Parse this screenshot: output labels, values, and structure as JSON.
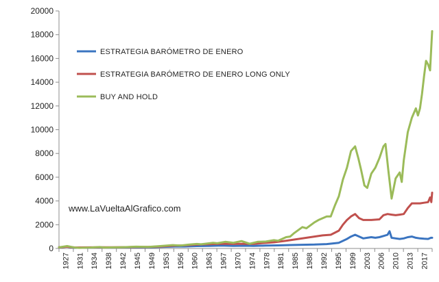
{
  "chart_data": {
    "type": "line",
    "title": "",
    "xlabel": "",
    "ylabel": "",
    "xlim": [
      1927,
      2019
    ],
    "ylim": [
      0,
      20000
    ],
    "yticks": [
      0,
      2000,
      4000,
      6000,
      8000,
      10000,
      12000,
      14000,
      16000,
      18000,
      20000
    ],
    "xtick_labels": [
      "1927",
      "1931",
      "1934",
      "1938",
      "1942",
      "1945",
      "1949",
      "1953",
      "1956",
      "1960",
      "1963",
      "1967",
      "1970",
      "1974",
      "1978",
      "1981",
      "1985",
      "1988",
      "1992",
      "1995",
      "1999",
      "2003",
      "2006",
      "2010",
      "2013",
      "2017"
    ],
    "grid": false,
    "legend_position": "top-left",
    "annotation": "www.LaVueltaAlGrafico.com",
    "series": [
      {
        "name": "ESTRATEGIA BARÓMETRO DE ENERO",
        "color": "#3a74c0",
        "points": [
          [
            1927,
            100
          ],
          [
            1929,
            150
          ],
          [
            1931,
            60
          ],
          [
            1933,
            70
          ],
          [
            1935,
            80
          ],
          [
            1937,
            90
          ],
          [
            1940,
            80
          ],
          [
            1943,
            90
          ],
          [
            1946,
            110
          ],
          [
            1949,
            100
          ],
          [
            1952,
            130
          ],
          [
            1955,
            160
          ],
          [
            1958,
            170
          ],
          [
            1961,
            200
          ],
          [
            1964,
            220
          ],
          [
            1967,
            240
          ],
          [
            1970,
            220
          ],
          [
            1973,
            230
          ],
          [
            1975,
            220
          ],
          [
            1978,
            240
          ],
          [
            1981,
            260
          ],
          [
            1984,
            290
          ],
          [
            1987,
            310
          ],
          [
            1990,
            330
          ],
          [
            1993,
            370
          ],
          [
            1996,
            480
          ],
          [
            1998,
            800
          ],
          [
            1999,
            1000
          ],
          [
            2000,
            1150
          ],
          [
            2001,
            1000
          ],
          [
            2002,
            850
          ],
          [
            2003,
            900
          ],
          [
            2004,
            950
          ],
          [
            2005,
            900
          ],
          [
            2006,
            950
          ],
          [
            2007,
            1050
          ],
          [
            2008,
            1150
          ],
          [
            2008.5,
            1450
          ],
          [
            2009,
            900
          ],
          [
            2010,
            850
          ],
          [
            2011,
            800
          ],
          [
            2012,
            850
          ],
          [
            2013,
            950
          ],
          [
            2014,
            1000
          ],
          [
            2015,
            900
          ],
          [
            2016,
            850
          ],
          [
            2017,
            820
          ],
          [
            2018,
            800
          ],
          [
            2018.7,
            900
          ],
          [
            2019,
            900
          ]
        ]
      },
      {
        "name": "ESTRATEGIA BARÓMETRO DE ENERO LONG ONLY",
        "color": "#c0504d",
        "points": [
          [
            1927,
            100
          ],
          [
            1929,
            150
          ],
          [
            1931,
            80
          ],
          [
            1934,
            90
          ],
          [
            1937,
            100
          ],
          [
            1940,
            100
          ],
          [
            1943,
            110
          ],
          [
            1946,
            130
          ],
          [
            1949,
            130
          ],
          [
            1952,
            170
          ],
          [
            1955,
            230
          ],
          [
            1958,
            260
          ],
          [
            1961,
            320
          ],
          [
            1964,
            360
          ],
          [
            1967,
            400
          ],
          [
            1970,
            380
          ],
          [
            1973,
            400
          ],
          [
            1975,
            380
          ],
          [
            1977,
            450
          ],
          [
            1980,
            520
          ],
          [
            1983,
            650
          ],
          [
            1986,
            800
          ],
          [
            1988,
            900
          ],
          [
            1990,
            1000
          ],
          [
            1992,
            1100
          ],
          [
            1994,
            1150
          ],
          [
            1996,
            1500
          ],
          [
            1997,
            2000
          ],
          [
            1998,
            2400
          ],
          [
            1999,
            2700
          ],
          [
            2000,
            2900
          ],
          [
            2001,
            2550
          ],
          [
            2002,
            2400
          ],
          [
            2004,
            2400
          ],
          [
            2006,
            2450
          ],
          [
            2007,
            2800
          ],
          [
            2008,
            2900
          ],
          [
            2009,
            2850
          ],
          [
            2010,
            2800
          ],
          [
            2011,
            2850
          ],
          [
            2012,
            2900
          ],
          [
            2013,
            3400
          ],
          [
            2014,
            3800
          ],
          [
            2015,
            3800
          ],
          [
            2016,
            3800
          ],
          [
            2017,
            3850
          ],
          [
            2018,
            3900
          ],
          [
            2018.5,
            4300
          ],
          [
            2018.8,
            3900
          ],
          [
            2019,
            4700
          ]
        ]
      },
      {
        "name": "BUY AND HOLD",
        "color": "#9bbb59",
        "points": [
          [
            1927,
            100
          ],
          [
            1929,
            200
          ],
          [
            1931,
            70
          ],
          [
            1932,
            50
          ],
          [
            1935,
            80
          ],
          [
            1937,
            120
          ],
          [
            1938,
            80
          ],
          [
            1941,
            90
          ],
          [
            1943,
            110
          ],
          [
            1946,
            150
          ],
          [
            1949,
            130
          ],
          [
            1952,
            200
          ],
          [
            1955,
            280
          ],
          [
            1957,
            250
          ],
          [
            1959,
            320
          ],
          [
            1961,
            380
          ],
          [
            1962,
            350
          ],
          [
            1965,
            480
          ],
          [
            1966,
            440
          ],
          [
            1968,
            560
          ],
          [
            1970,
            480
          ],
          [
            1972,
            620
          ],
          [
            1974,
            400
          ],
          [
            1976,
            560
          ],
          [
            1978,
            580
          ],
          [
            1980,
            700
          ],
          [
            1981,
            650
          ],
          [
            1983,
            950
          ],
          [
            1984,
            1000
          ],
          [
            1985,
            1300
          ],
          [
            1987,
            1800
          ],
          [
            1988,
            1700
          ],
          [
            1990,
            2200
          ],
          [
            1991,
            2400
          ],
          [
            1993,
            2700
          ],
          [
            1994,
            2700
          ],
          [
            1995,
            3600
          ],
          [
            1996,
            4400
          ],
          [
            1997,
            5800
          ],
          [
            1998,
            6800
          ],
          [
            1999,
            8200
          ],
          [
            2000,
            8600
          ],
          [
            2000.8,
            7600
          ],
          [
            2001.5,
            6600
          ],
          [
            2002.3,
            5300
          ],
          [
            2003,
            5100
          ],
          [
            2004,
            6300
          ],
          [
            2005,
            6800
          ],
          [
            2006,
            7600
          ],
          [
            2007,
            8600
          ],
          [
            2007.5,
            8800
          ],
          [
            2008.2,
            6600
          ],
          [
            2009,
            4200
          ],
          [
            2010,
            5900
          ],
          [
            2011,
            6400
          ],
          [
            2011.5,
            5600
          ],
          [
            2012,
            7400
          ],
          [
            2013,
            9800
          ],
          [
            2014,
            11000
          ],
          [
            2015,
            11800
          ],
          [
            2015.5,
            11200
          ],
          [
            2016,
            11800
          ],
          [
            2016.5,
            13000
          ],
          [
            2017,
            14500
          ],
          [
            2017.5,
            15800
          ],
          [
            2018,
            15500
          ],
          [
            2018.5,
            15000
          ],
          [
            2018.8,
            17000
          ],
          [
            2019,
            18300
          ]
        ]
      }
    ]
  }
}
